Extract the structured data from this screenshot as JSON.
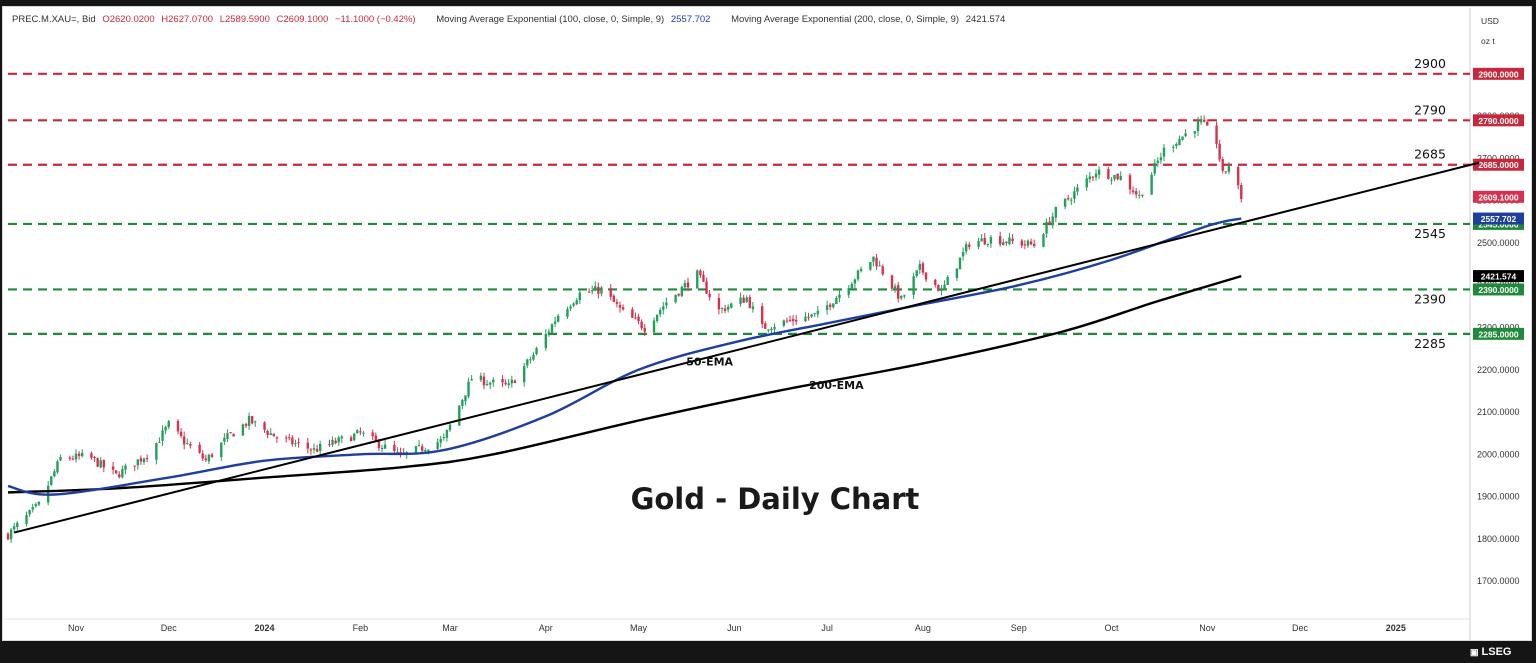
{
  "header": {
    "symbol": "PREC.M.XAU=, Bid",
    "open": "O2620.0200",
    "high": "H2627.0700",
    "low": "L2589.5900",
    "close": "C2609.1000",
    "change": "−11.1000 (−0.42%)",
    "ema100_label": "Moving Average Exponential (100, close, 0, Simple, 9)",
    "ema100_value": "2557.702",
    "ema200_label": "Moving Average Exponential (200, close, 0, Simple, 9)",
    "ema200_value": "2421.574"
  },
  "axis": {
    "currency": "USD",
    "unit": "oz t"
  },
  "footer": {
    "brand": "LSEG"
  },
  "colors": {
    "up": "#22a05a",
    "down": "#d9304f",
    "resistance": "#c8283c",
    "support": "#1f8a3a",
    "ema50": "#1f3f9f",
    "ema200": "#000000",
    "trendline": "#000000"
  },
  "chart_data": {
    "type": "candlestick",
    "title": "Gold - Daily Chart",
    "ylim": [
      1620,
      2980
    ],
    "y_ticks": [
      1700,
      1800,
      1900,
      2000,
      2100,
      2200,
      2300,
      2400,
      2500,
      2600,
      2700,
      2800,
      2900
    ],
    "y_tick_labels": [
      "1700.0000",
      "1800.0000",
      "1900.0000",
      "2000.0000",
      "2100.0000",
      "2200.0000",
      "2300.0000",
      "2400.0000",
      "2500.0000",
      "2600.0000",
      "2700.0000",
      "2800.0000",
      "2900.0000"
    ],
    "x_range": [
      "2023-10-10",
      "2025-01-25"
    ],
    "x_ticks": [
      {
        "date": "2023-11-01",
        "label": "Nov"
      },
      {
        "date": "2023-12-01",
        "label": "Dec"
      },
      {
        "date": "2024-01-01",
        "label": "2024"
      },
      {
        "date": "2024-02-01",
        "label": "Feb"
      },
      {
        "date": "2024-03-01",
        "label": "Mar"
      },
      {
        "date": "2024-04-01",
        "label": "Apr"
      },
      {
        "date": "2024-05-01",
        "label": "May"
      },
      {
        "date": "2024-06-01",
        "label": "Jun"
      },
      {
        "date": "2024-07-01",
        "label": "Jul"
      },
      {
        "date": "2024-08-01",
        "label": "Aug"
      },
      {
        "date": "2024-09-01",
        "label": "Sep"
      },
      {
        "date": "2024-10-01",
        "label": "Oct"
      },
      {
        "date": "2024-11-01",
        "label": "Nov"
      },
      {
        "date": "2024-12-01",
        "label": "Dec"
      },
      {
        "date": "2025-01-01",
        "label": "2025"
      }
    ],
    "close_path": [
      {
        "date": "2023-10-10",
        "close": 1810
      },
      {
        "date": "2023-10-20",
        "close": 1880
      },
      {
        "date": "2023-10-27",
        "close": 1990
      },
      {
        "date": "2023-11-05",
        "close": 1995
      },
      {
        "date": "2023-11-14",
        "close": 1950
      },
      {
        "date": "2023-11-25",
        "close": 2005
      },
      {
        "date": "2023-12-01",
        "close": 2070
      },
      {
        "date": "2023-12-06",
        "close": 2030
      },
      {
        "date": "2023-12-13",
        "close": 1985
      },
      {
        "date": "2023-12-20",
        "close": 2040
      },
      {
        "date": "2023-12-27",
        "close": 2080
      },
      {
        "date": "2024-01-05",
        "close": 2040
      },
      {
        "date": "2024-01-17",
        "close": 2010
      },
      {
        "date": "2024-02-01",
        "close": 2050
      },
      {
        "date": "2024-02-14",
        "close": 1995
      },
      {
        "date": "2024-02-28",
        "close": 2035
      },
      {
        "date": "2024-03-08",
        "close": 2180
      },
      {
        "date": "2024-03-20",
        "close": 2160
      },
      {
        "date": "2024-03-28",
        "close": 2235
      },
      {
        "date": "2024-04-05",
        "close": 2330
      },
      {
        "date": "2024-04-12",
        "close": 2380
      },
      {
        "date": "2024-04-19",
        "close": 2390
      },
      {
        "date": "2024-04-26",
        "close": 2335
      },
      {
        "date": "2024-05-03",
        "close": 2300
      },
      {
        "date": "2024-05-10",
        "close": 2360
      },
      {
        "date": "2024-05-20",
        "close": 2425
      },
      {
        "date": "2024-05-27",
        "close": 2340
      },
      {
        "date": "2024-06-05",
        "close": 2370
      },
      {
        "date": "2024-06-10",
        "close": 2300
      },
      {
        "date": "2024-06-21",
        "close": 2320
      },
      {
        "date": "2024-06-28",
        "close": 2330
      },
      {
        "date": "2024-07-05",
        "close": 2380
      },
      {
        "date": "2024-07-16",
        "close": 2465
      },
      {
        "date": "2024-07-25",
        "close": 2365
      },
      {
        "date": "2024-07-31",
        "close": 2440
      },
      {
        "date": "2024-08-07",
        "close": 2385
      },
      {
        "date": "2024-08-16",
        "close": 2500
      },
      {
        "date": "2024-08-23",
        "close": 2510
      },
      {
        "date": "2024-09-06",
        "close": 2495
      },
      {
        "date": "2024-09-13",
        "close": 2575
      },
      {
        "date": "2024-09-26",
        "close": 2670
      },
      {
        "date": "2024-10-04",
        "close": 2655
      },
      {
        "date": "2024-10-10",
        "close": 2610
      },
      {
        "date": "2024-10-18",
        "close": 2720
      },
      {
        "date": "2024-10-30",
        "close": 2785
      },
      {
        "date": "2024-11-04",
        "close": 2740
      },
      {
        "date": "2024-11-06",
        "close": 2660
      },
      {
        "date": "2024-11-08",
        "close": 2685
      },
      {
        "date": "2024-11-12",
        "close": 2609
      }
    ],
    "ema50": [
      {
        "date": "2023-10-10",
        "value": 1925
      },
      {
        "date": "2023-10-25",
        "value": 1905
      },
      {
        "date": "2023-12-01",
        "value": 1945
      },
      {
        "date": "2024-01-01",
        "value": 1985
      },
      {
        "date": "2024-02-01",
        "value": 2000
      },
      {
        "date": "2024-02-28",
        "value": 2010
      },
      {
        "date": "2024-04-01",
        "value": 2090
      },
      {
        "date": "2024-05-01",
        "value": 2200
      },
      {
        "date": "2024-06-01",
        "value": 2265
      },
      {
        "date": "2024-07-01",
        "value": 2310
      },
      {
        "date": "2024-08-01",
        "value": 2355
      },
      {
        "date": "2024-09-01",
        "value": 2400
      },
      {
        "date": "2024-10-01",
        "value": 2460
      },
      {
        "date": "2024-11-01",
        "value": 2540
      },
      {
        "date": "2024-11-12",
        "value": 2557.7
      }
    ],
    "ema200": [
      {
        "date": "2023-10-10",
        "value": 1910
      },
      {
        "date": "2023-11-15",
        "value": 1920
      },
      {
        "date": "2024-01-01",
        "value": 1945
      },
      {
        "date": "2024-02-15",
        "value": 1970
      },
      {
        "date": "2024-03-15",
        "value": 2000
      },
      {
        "date": "2024-05-01",
        "value": 2080
      },
      {
        "date": "2024-06-15",
        "value": 2150
      },
      {
        "date": "2024-08-01",
        "value": 2215
      },
      {
        "date": "2024-09-15",
        "value": 2290
      },
      {
        "date": "2024-10-15",
        "value": 2360
      },
      {
        "date": "2024-11-12",
        "value": 2421.6
      }
    ],
    "trendline": [
      {
        "date": "2023-10-12",
        "value": 1815
      },
      {
        "date": "2025-01-28",
        "value": 2690
      }
    ],
    "horizontal_levels": [
      {
        "value": 2900,
        "label": "2900",
        "price_tag": "2900.0000",
        "kind": "resistance"
      },
      {
        "value": 2790,
        "label": "2790",
        "price_tag": "2790.0000",
        "kind": "resistance"
      },
      {
        "value": 2685,
        "label": "2685",
        "price_tag": "2685.0000",
        "kind": "resistance"
      },
      {
        "value": 2545,
        "label": "2545",
        "price_tag": "2545.0000",
        "kind": "support"
      },
      {
        "value": 2390,
        "label": "2390",
        "price_tag": "2390.0000",
        "kind": "support"
      },
      {
        "value": 2285,
        "label": "2285",
        "price_tag": "2285.0000",
        "kind": "support"
      }
    ],
    "price_tags": [
      {
        "value": 2609.1,
        "text": "2609.1000",
        "color": "#d9304f"
      },
      {
        "value": 2557.702,
        "text": "2557.702",
        "color": "#1f3f9f"
      },
      {
        "value": 2421.574,
        "text": "2421.574",
        "color": "#000000"
      }
    ],
    "annotations": [
      {
        "text": "50-EMA",
        "date": "2024-05-24",
        "value": 2210
      },
      {
        "text": "200-EMA",
        "date": "2024-07-04",
        "value": 2155
      }
    ]
  }
}
